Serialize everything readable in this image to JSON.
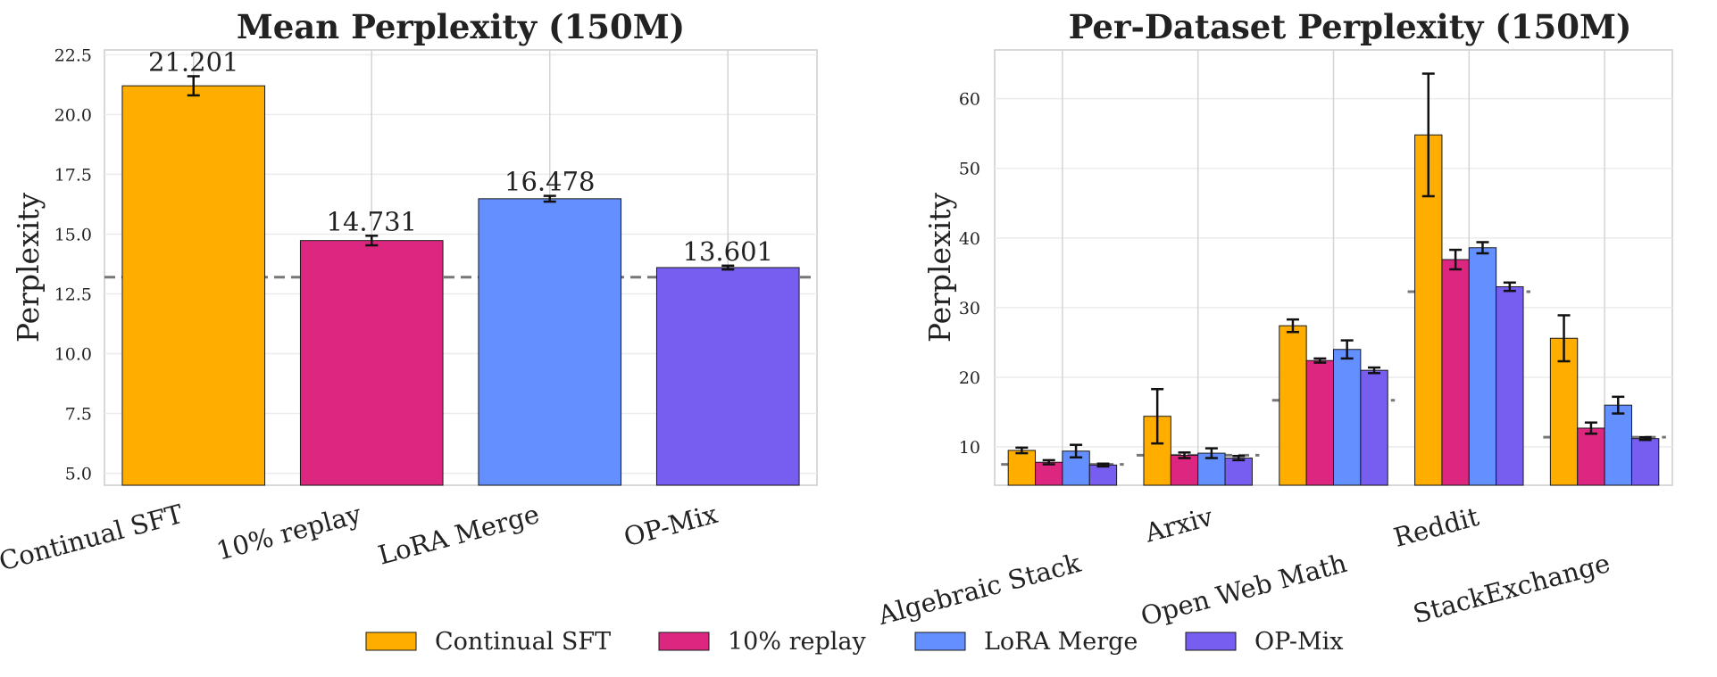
{
  "chart_data": [
    {
      "type": "bar",
      "title": "Mean Perplexity (150M)",
      "xlabel": "",
      "ylabel": "Perplexity",
      "ylim": [
        4.5,
        22.7
      ],
      "yticks": [
        "5.0",
        "7.5",
        "10.0",
        "12.5",
        "15.0",
        "17.5",
        "20.0",
        "22.5"
      ],
      "categories": [
        "Continual SFT",
        "10% replay",
        "LoRA Merge",
        "OP-Mix"
      ],
      "values": [
        21.201,
        14.731,
        16.478,
        13.601
      ],
      "value_labels": [
        "21.201",
        "14.731",
        "16.478",
        "13.601"
      ],
      "errors": [
        0.4,
        0.2,
        0.12,
        0.08
      ],
      "baseline": 13.2,
      "colors": [
        "#FFAE00",
        "#DC267F",
        "#648FFF",
        "#785EF0"
      ],
      "grid": true
    },
    {
      "type": "bar",
      "title": "Per-Dataset Perplexity (150M)",
      "xlabel": "",
      "ylabel": "Perplexity",
      "ylim": [
        4.5,
        67
      ],
      "yticks": [
        "10",
        "20",
        "30",
        "40",
        "50",
        "60"
      ],
      "categories": [
        "Algebraic Stack",
        "Arxiv",
        "Open Web Math",
        "Reddit",
        "StackExchange"
      ],
      "series": [
        {
          "name": "Continual SFT",
          "values": [
            9.5,
            14.4,
            27.4,
            54.8,
            25.6
          ],
          "errors": [
            0.4,
            3.9,
            0.9,
            8.8,
            3.3
          ]
        },
        {
          "name": "10% replay",
          "values": [
            7.8,
            8.8,
            22.4,
            36.9,
            12.7
          ],
          "errors": [
            0.3,
            0.4,
            0.3,
            1.4,
            0.8
          ]
        },
        {
          "name": "LoRA Merge",
          "values": [
            9.4,
            9.1,
            24.0,
            38.6,
            16.0
          ],
          "errors": [
            0.9,
            0.7,
            1.3,
            0.8,
            1.2
          ]
        },
        {
          "name": "OP-Mix",
          "values": [
            7.4,
            8.4,
            21.0,
            33.0,
            11.2
          ],
          "errors": [
            0.2,
            0.3,
            0.4,
            0.6,
            0.2
          ]
        }
      ],
      "baselines": [
        7.5,
        8.8,
        16.7,
        32.3,
        11.4
      ],
      "colors": [
        "#FFAE00",
        "#DC267F",
        "#648FFF",
        "#785EF0"
      ],
      "grid": true
    }
  ],
  "legend": {
    "placement": "bottom-center",
    "items": [
      "Continual SFT",
      "10% replay",
      "LoRA Merge",
      "OP-Mix"
    ]
  }
}
